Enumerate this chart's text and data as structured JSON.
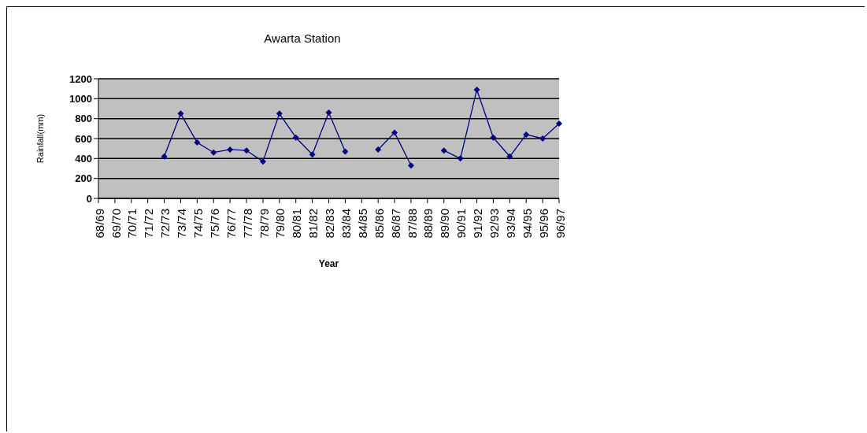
{
  "chart_data": {
    "type": "line",
    "title": "Awarta Station",
    "xlabel": "Year",
    "ylabel": "Rainfall(mm)",
    "categories": [
      "68/69",
      "69/70",
      "70/71",
      "71/72",
      "72/73",
      "73/74",
      "74/75",
      "75/76",
      "76/77",
      "77/78",
      "78/79",
      "79/80",
      "80/81",
      "81/82",
      "82/83",
      "83/84",
      "84/85",
      "85/86",
      "86/87",
      "87/88",
      "88/89",
      "89/90",
      "90/91",
      "91/92",
      "92/93",
      "93/94",
      "94/95",
      "95/96",
      "96/97"
    ],
    "series": [
      {
        "color": "#000080",
        "values": [
          null,
          null,
          null,
          null,
          420,
          850,
          560,
          460,
          490,
          480,
          370,
          850,
          610,
          440,
          860,
          470,
          null,
          490,
          660,
          330,
          null,
          480,
          400,
          1090,
          610,
          420,
          640,
          600,
          750
        ]
      }
    ],
    "ylim": [
      0,
      1200
    ],
    "yticks": [
      0,
      200,
      400,
      600,
      800,
      1000,
      1200
    ],
    "grid": "y",
    "marker": "diamond",
    "line_style": "solid",
    "legend": false
  }
}
